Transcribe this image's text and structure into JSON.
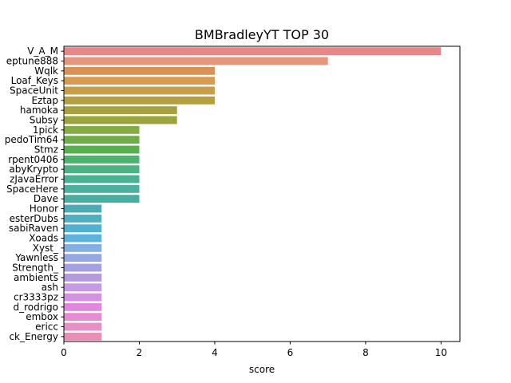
{
  "chart_data": {
    "type": "bar",
    "orientation": "horizontal",
    "title": "BMBradleyYT TOP 30",
    "xlabel": "score",
    "ylabel": "",
    "xlim": [
      0,
      10.5
    ],
    "xticks": [
      "0",
      "2",
      "4",
      "6",
      "8",
      "10"
    ],
    "grid": false,
    "legend": "none",
    "categories": [
      "V_A_M",
      "eptune888",
      "Wqlk",
      "Loaf_Keys",
      "SpaceUnit",
      "Eztap",
      "hamoka",
      "Subsy",
      "1pick",
      "pedoTim64",
      "Stmz",
      "rpent0406",
      "abyKrypto",
      "zJavaError",
      "SpaceHere",
      "Dave",
      "Honor",
      "esterDubs",
      "sabiRaven",
      "Xoads",
      "Xyst_",
      "Yawnless",
      "Strength_",
      "ambients",
      "ash",
      "cr3333pz",
      "d_rodrigo",
      "embox",
      "ericc",
      "ck_Energy"
    ],
    "values": [
      10,
      7,
      4,
      4,
      4,
      4,
      3,
      3,
      2,
      2,
      2,
      2,
      2,
      2,
      2,
      2,
      1,
      1,
      1,
      1,
      1,
      1,
      1,
      1,
      1,
      1,
      1,
      1,
      1,
      1
    ],
    "colors": [
      "#e8868a",
      "#e5967c",
      "#d99155",
      "#da9a50",
      "#c79d48",
      "#b59f40",
      "#a8a03f",
      "#9ba43c",
      "#85ab45",
      "#6fad48",
      "#56b04b",
      "#4cb36e",
      "#4bb284",
      "#4ab290",
      "#4ab19c",
      "#48ae9f",
      "#4cabb4",
      "#4dafc0",
      "#51b1cf",
      "#5cb3dc",
      "#83b0e2",
      "#96a7e3",
      "#a5a0e2",
      "#b49be0",
      "#c69ae4",
      "#d493e2",
      "#e088de",
      "#e78bd3",
      "#e88fc5",
      "#e88fb3"
    ]
  }
}
